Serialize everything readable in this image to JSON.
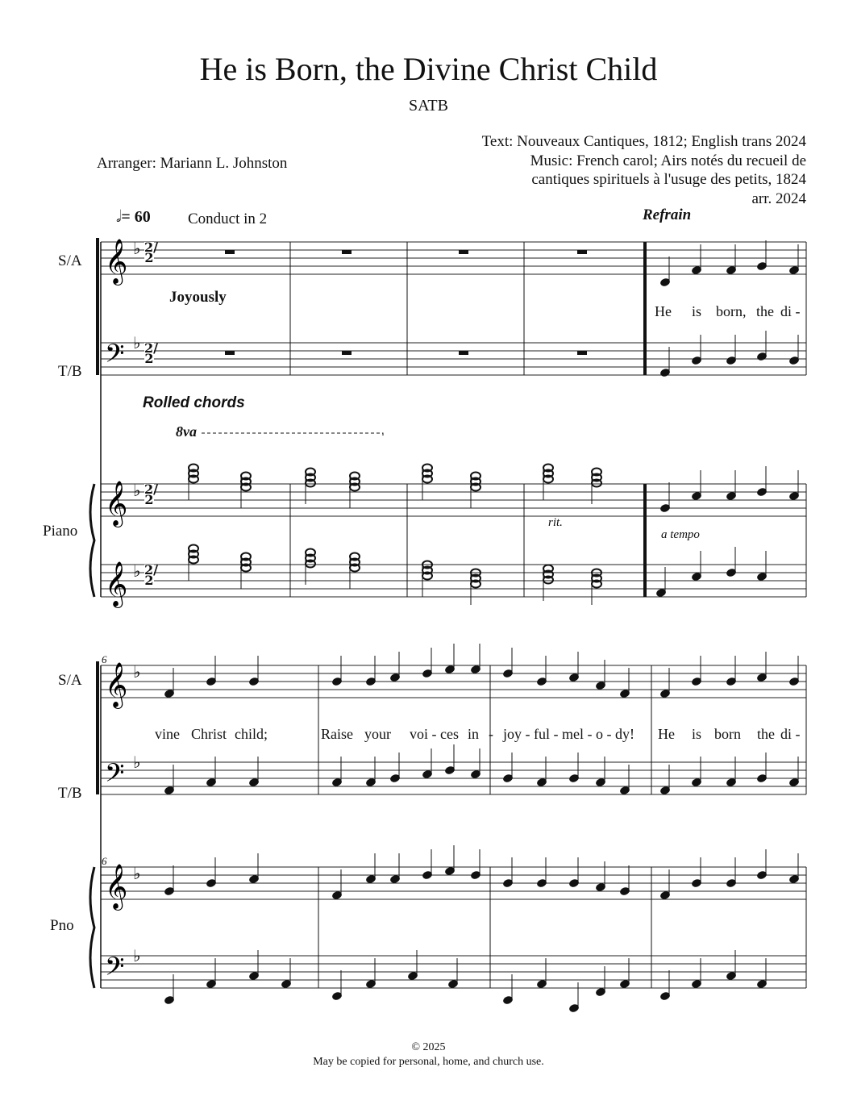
{
  "title": "He is Born, the Divine Christ Child",
  "voicing": "SATB",
  "credits": {
    "text": "Text: Nouveaux Cantiques, 1812; English trans 2024",
    "music1": "Music: French carol; Airs notés du recueil de",
    "music2": "cantiques spirituels à l'usuge des petits, 1824",
    "arr": "arr. 2024"
  },
  "arranger": "Arranger: Mariann L. Johnston",
  "tempo": "= 60",
  "conduct": "Conduct in 2",
  "refrain": "Refrain",
  "joyously": "Joyously",
  "rolled": "Rolled chords",
  "ottava": "8va",
  "rit": "rit.",
  "a_tempo": "a tempo",
  "time_signature": "2/2",
  "labels": {
    "sa": "S/A",
    "tb": "T/B",
    "piano": "Piano",
    "pno": "Pno"
  },
  "measure_number": "6",
  "lyrics": {
    "sys1": [
      "He",
      "is",
      "born,",
      "the",
      "di -"
    ],
    "sys2": [
      "vine",
      "Christ",
      "child;",
      "Raise",
      "your",
      "voi - ces",
      "in",
      "-",
      "joy - ful - mel - o - dy!",
      "He",
      "is",
      "born",
      "the",
      "di -"
    ]
  },
  "footer": {
    "copyright": "© 2025",
    "notice": "May be copied for personal, home, and church use."
  }
}
